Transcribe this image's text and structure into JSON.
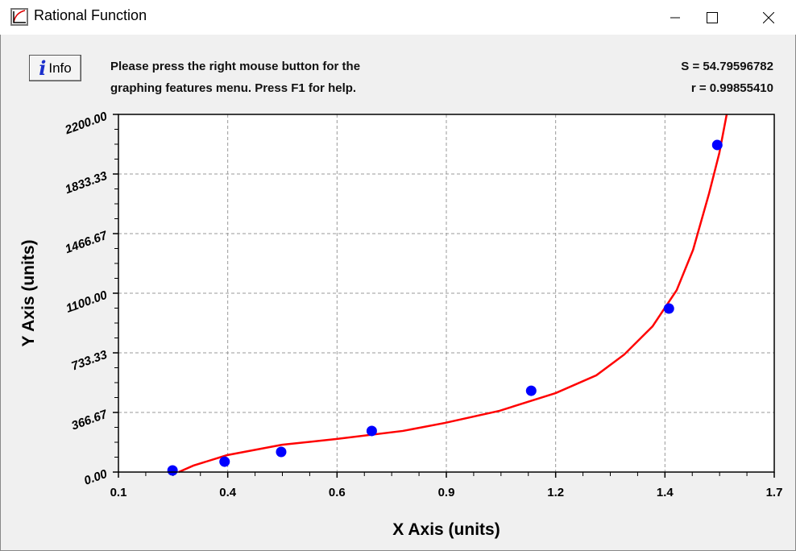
{
  "window": {
    "title": "Rational Function"
  },
  "toolbar": {
    "info_label": "Info",
    "message_line1": "Please press the right mouse button for the",
    "message_line2": "graphing features menu.  Press F1 for help."
  },
  "stats": {
    "s": "S = 54.79596782",
    "r": "r = 0.99855410"
  },
  "chart_data": {
    "type": "scatter",
    "title": "",
    "xlabel": "X Axis (units)",
    "ylabel": "Y Axis (units)",
    "xlim": [
      0.1,
      1.7
    ],
    "ylim": [
      0,
      2200
    ],
    "x_tick_labels": [
      "0.1",
      "0.4",
      "0.6",
      "0.9",
      "1.2",
      "1.4",
      "1.7"
    ],
    "y_tick_labels": [
      "0.00",
      "366.67",
      "733.33",
      "1100.00",
      "1466.67",
      "1833.33",
      "2200.00"
    ],
    "grid": true,
    "points": {
      "color": "#0000ff",
      "x": [
        0.232,
        0.359,
        0.497,
        0.718,
        1.107,
        1.443,
        1.561
      ],
      "y": [
        10,
        64,
        124,
        253,
        500,
        1006,
        2012
      ]
    },
    "fit_curve": {
      "color": "#ff0000",
      "x": [
        0.247,
        0.283,
        0.365,
        0.499,
        0.631,
        0.794,
        0.896,
        1.03,
        1.167,
        1.266,
        1.334,
        1.403,
        1.462,
        1.502,
        1.541,
        1.566,
        1.584
      ],
      "y": [
        0,
        40,
        104,
        168,
        203,
        253,
        302,
        377,
        486,
        595,
        723,
        896,
        1119,
        1367,
        1714,
        1962,
        2200
      ]
    }
  }
}
